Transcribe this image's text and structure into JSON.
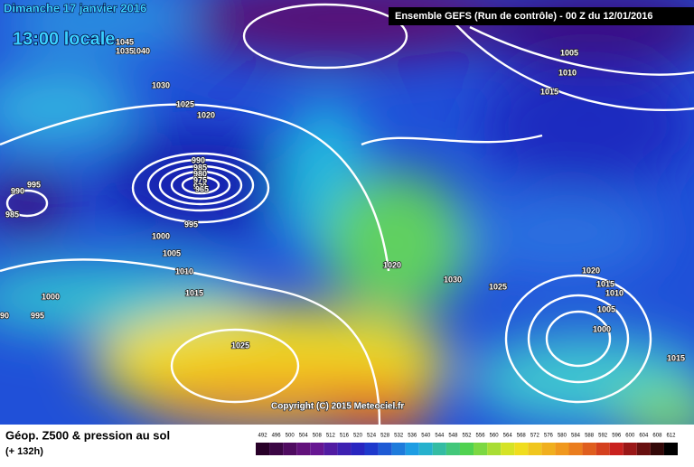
{
  "header": {
    "date": "Dimanche 17 janvier 2016",
    "time": "13:00 locale",
    "model": "Ensemble GEFS  (Run de contrôle)  -  00 Z du 12/01/2016"
  },
  "copyright": "Copyright (C) 2015 Meteociel.fr",
  "footer": {
    "title": "Géop. Z500 & pression au sol",
    "lead": "(+ 132h)"
  },
  "isobar_labels": [
    "1045",
    "1040",
    "1035",
    "1030",
    "1025",
    "1020",
    "990",
    "985",
    "980",
    "975",
    "970",
    "965",
    "995",
    "1000",
    "1005",
    "1010",
    "1015",
    "995",
    "990",
    "985",
    "1000",
    "995",
    "90",
    "1025",
    "1020",
    "1030",
    "1025",
    "1005",
    "1010",
    "1015",
    "1020",
    "1015",
    "1010",
    "1005",
    "1000",
    "1015"
  ],
  "colorbar": [
    "492",
    "496",
    "500",
    "504",
    "508",
    "512",
    "516",
    "520",
    "524",
    "528",
    "532",
    "536",
    "540",
    "544",
    "548",
    "552",
    "556",
    "560",
    "564",
    "568",
    "572",
    "576",
    "580",
    "584",
    "588",
    "592",
    "596",
    "600",
    "604",
    "608",
    "612"
  ]
}
